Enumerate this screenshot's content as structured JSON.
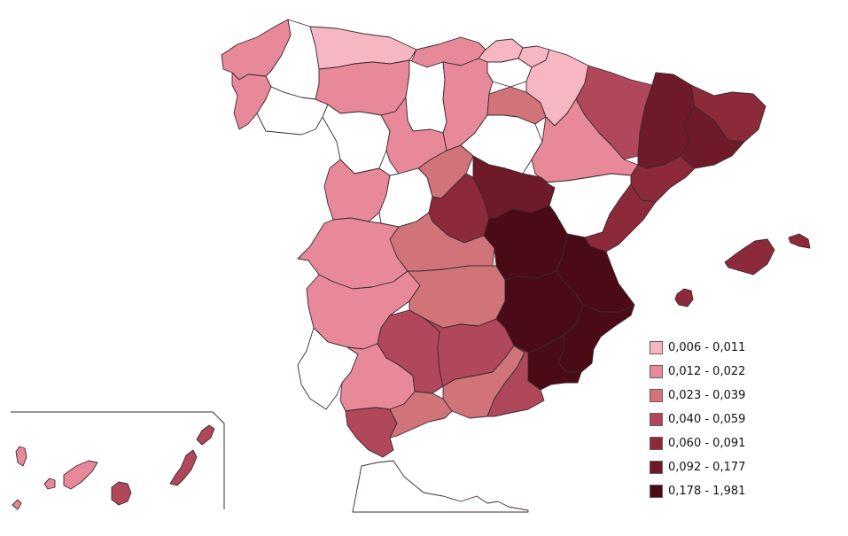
{
  "map": {
    "title": "",
    "colors": {
      "c1": "#f6b6c2",
      "c2": "#e8899a",
      "c3": "#d07479",
      "c4": "#b0475a",
      "c5": "#8c2a3a",
      "c6": "#6e1a28",
      "c7": "#4a0a16",
      "none": "#ffffff"
    },
    "regions": [
      {
        "name": "A Coruña",
        "cls": "c2"
      },
      {
        "name": "Lugo",
        "cls": "none"
      },
      {
        "name": "Pontevedra",
        "cls": "c2"
      },
      {
        "name": "Ourense",
        "cls": "none"
      },
      {
        "name": "Asturias",
        "cls": "c1"
      },
      {
        "name": "Cantabria",
        "cls": "c2"
      },
      {
        "name": "Bizkaia",
        "cls": "c1"
      },
      {
        "name": "Gipuzkoa",
        "cls": "c1"
      },
      {
        "name": "Araba",
        "cls": "none"
      },
      {
        "name": "Navarra",
        "cls": "c1"
      },
      {
        "name": "León",
        "cls": "c2"
      },
      {
        "name": "Palencia",
        "cls": "none"
      },
      {
        "name": "Burgos",
        "cls": "c2"
      },
      {
        "name": "La Rioja",
        "cls": "c3"
      },
      {
        "name": "Zamora",
        "cls": "none"
      },
      {
        "name": "Valladolid",
        "cls": "c2"
      },
      {
        "name": "Soria",
        "cls": "none"
      },
      {
        "name": "Huesca",
        "cls": "c4"
      },
      {
        "name": "Zaragoza",
        "cls": "c2"
      },
      {
        "name": "Lleida",
        "cls": "c6"
      },
      {
        "name": "Girona",
        "cls": "c5"
      },
      {
        "name": "Barcelona",
        "cls": "c6"
      },
      {
        "name": "Tarragona",
        "cls": "c5"
      },
      {
        "name": "Salamanca",
        "cls": "c2"
      },
      {
        "name": "Ávila",
        "cls": "none"
      },
      {
        "name": "Segovia",
        "cls": "c3"
      },
      {
        "name": "Madrid",
        "cls": "c5"
      },
      {
        "name": "Guadalajara",
        "cls": "c6"
      },
      {
        "name": "Teruel",
        "cls": "none"
      },
      {
        "name": "Castellón",
        "cls": "c5"
      },
      {
        "name": "Cáceres",
        "cls": "c2"
      },
      {
        "name": "Toledo",
        "cls": "c3"
      },
      {
        "name": "Cuenca",
        "cls": "c7"
      },
      {
        "name": "Valencia",
        "cls": "c7"
      },
      {
        "name": "Badajoz",
        "cls": "c2"
      },
      {
        "name": "Ciudad Real",
        "cls": "c3"
      },
      {
        "name": "Albacete",
        "cls": "c7"
      },
      {
        "name": "Alicante",
        "cls": "c7"
      },
      {
        "name": "Huelva",
        "cls": "none"
      },
      {
        "name": "Sevilla",
        "cls": "c2"
      },
      {
        "name": "Córdoba",
        "cls": "c4"
      },
      {
        "name": "Jaén",
        "cls": "c4"
      },
      {
        "name": "Murcia",
        "cls": "c7"
      },
      {
        "name": "Cádiz",
        "cls": "c4"
      },
      {
        "name": "Málaga",
        "cls": "c3"
      },
      {
        "name": "Granada",
        "cls": "c3"
      },
      {
        "name": "Almería",
        "cls": "c4"
      },
      {
        "name": "Mallorca",
        "cls": "c5"
      },
      {
        "name": "Menorca",
        "cls": "c5"
      },
      {
        "name": "Ibiza",
        "cls": "c5"
      },
      {
        "name": "La Palma",
        "cls": "c2"
      },
      {
        "name": "Tenerife",
        "cls": "c2"
      },
      {
        "name": "La Gomera",
        "cls": "c2"
      },
      {
        "name": "El Hierro",
        "cls": "c2"
      },
      {
        "name": "Gran Canaria",
        "cls": "c4"
      },
      {
        "name": "Fuerteventura",
        "cls": "c4"
      },
      {
        "name": "Lanzarote",
        "cls": "c4"
      },
      {
        "name": "Morocco",
        "cls": "none"
      }
    ]
  },
  "legend": {
    "items": [
      {
        "label": "0,006 - 0,011",
        "color": "#f6b6c2"
      },
      {
        "label": "0,012 - 0,022",
        "color": "#e8899a"
      },
      {
        "label": "0,023 - 0,039",
        "color": "#d07479"
      },
      {
        "label": "0,040 - 0,059",
        "color": "#b0475a"
      },
      {
        "label": "0,060 - 0,091",
        "color": "#8c2a3a"
      },
      {
        "label": "0,092 - 0,177",
        "color": "#6e1a28"
      },
      {
        "label": "0,178 - 1,981",
        "color": "#4a0a16"
      }
    ]
  }
}
